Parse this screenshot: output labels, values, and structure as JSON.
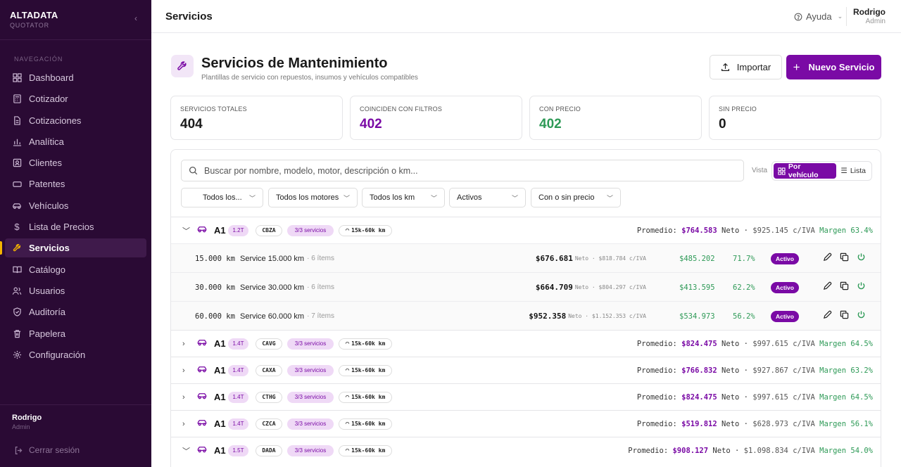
{
  "brand": {
    "name": "ALTADATA",
    "sub": "QUOTATOR"
  },
  "sidebar": {
    "section_label": "NAVEGACIÓN",
    "items": [
      {
        "label": "Dashboard",
        "icon": "dashboard-icon"
      },
      {
        "label": "Cotizador",
        "icon": "calculator-icon"
      },
      {
        "label": "Cotizaciones",
        "icon": "document-icon"
      },
      {
        "label": "Analítica",
        "icon": "bar-chart-icon"
      },
      {
        "label": "Clientes",
        "icon": "contact-card-icon"
      },
      {
        "label": "Patentes",
        "icon": "plate-icon"
      },
      {
        "label": "Vehículos",
        "icon": "car-icon"
      },
      {
        "label": "Lista de Precios",
        "icon": "dollar-icon"
      },
      {
        "label": "Servicios",
        "icon": "wrench-icon",
        "active": true
      },
      {
        "label": "Catálogo",
        "icon": "book-icon"
      },
      {
        "label": "Usuarios",
        "icon": "users-icon"
      },
      {
        "label": "Auditoría",
        "icon": "shield-icon"
      },
      {
        "label": "Papelera",
        "icon": "trash-icon"
      },
      {
        "label": "Configuración",
        "icon": "gear-icon"
      }
    ],
    "user": {
      "name": "Rodrigo",
      "role": "Admin"
    },
    "logout_label": "Cerrar sesión"
  },
  "topbar": {
    "title": "Servicios",
    "help_label": "Ayuda",
    "user": {
      "name": "Rodrigo",
      "role": "Admin"
    }
  },
  "header": {
    "title": "Servicios de Mantenimiento",
    "subtitle": "Plantillas de servicio con repuestos, insumos y vehículos compatibles",
    "import_label": "Importar",
    "new_label": "Nuevo Servicio"
  },
  "stats": [
    {
      "label": "SERVICIOS TOTALES",
      "value": "404",
      "color": "#1a1a1a"
    },
    {
      "label": "COINCIDEN CON FILTROS",
      "value": "402",
      "color": "#7a0aa5"
    },
    {
      "label": "CON PRECIO",
      "value": "402",
      "color": "#2e9a57"
    },
    {
      "label": "SIN PRECIO",
      "value": "0",
      "color": "#1a1a1a"
    }
  ],
  "toolbar": {
    "search_placeholder": "Buscar por nombre, modelo, motor, descripción o km...",
    "vista_label": "Vista",
    "view_vehicle": "Por vehículo",
    "view_list": "Lista",
    "filters": [
      "Todos los...",
      "Todos los motores",
      "Todos los km",
      "Activos",
      "Con o sin precio"
    ]
  },
  "groups": [
    {
      "model": "A1",
      "engine": "1.2T",
      "code": "CBZA",
      "services": "3/3 servicios",
      "km": "15k-60k km",
      "avg_label": "Promedio:",
      "avg_price": "$764.583",
      "neto": "Neto",
      "iva": "$925.145 c/IVA",
      "margin": "Margen 63.4%",
      "expanded": true,
      "rows": [
        {
          "km": "15.000 km",
          "name": "Service 15.000 km",
          "items": "· 6 ítems",
          "price": "$676.681",
          "price_sub": "Neto · $818.784 c/IVA",
          "cost": "$485.202",
          "pct": "71.7%",
          "status": "Activo"
        },
        {
          "km": "30.000 km",
          "name": "Service 30.000 km",
          "items": "· 6 ítems",
          "price": "$664.709",
          "price_sub": "Neto · $804.297 c/IVA",
          "cost": "$413.595",
          "pct": "62.2%",
          "status": "Activo"
        },
        {
          "km": "60.000 km",
          "name": "Service 60.000 km",
          "items": "· 7 ítems",
          "price": "$952.358",
          "price_sub": "Neto · $1.152.353 c/IVA",
          "cost": "$534.973",
          "pct": "56.2%",
          "status": "Activo"
        }
      ]
    },
    {
      "model": "A1",
      "engine": "1.4T",
      "code": "CAVG",
      "services": "3/3 servicios",
      "km": "15k-60k km",
      "avg_label": "Promedio:",
      "avg_price": "$824.475",
      "neto": "Neto",
      "iva": "$997.615 c/IVA",
      "margin": "Margen 64.5%"
    },
    {
      "model": "A1",
      "engine": "1.4T",
      "code": "CAXA",
      "services": "3/3 servicios",
      "km": "15k-60k km",
      "avg_label": "Promedio:",
      "avg_price": "$766.832",
      "neto": "Neto",
      "iva": "$927.867 c/IVA",
      "margin": "Margen 63.2%"
    },
    {
      "model": "A1",
      "engine": "1.4T",
      "code": "CTHG",
      "services": "3/3 servicios",
      "km": "15k-60k km",
      "avg_label": "Promedio:",
      "avg_price": "$824.475",
      "neto": "Neto",
      "iva": "$997.615 c/IVA",
      "margin": "Margen 64.5%"
    },
    {
      "model": "A1",
      "engine": "1.4T",
      "code": "CZCA",
      "services": "3/3 servicios",
      "km": "15k-60k km",
      "avg_label": "Promedio:",
      "avg_price": "$519.812",
      "neto": "Neto",
      "iva": "$628.973 c/IVA",
      "margin": "Margen 56.1%"
    },
    {
      "model": "A1",
      "engine": "1.5T",
      "code": "DADA",
      "services": "3/3 servicios",
      "km": "15k-60k km",
      "avg_label": "Promedio:",
      "avg_price": "$908.127",
      "neto": "Neto",
      "iva": "$1.098.834 c/IVA",
      "margin": "Margen 54.0%",
      "expanded": true
    }
  ]
}
